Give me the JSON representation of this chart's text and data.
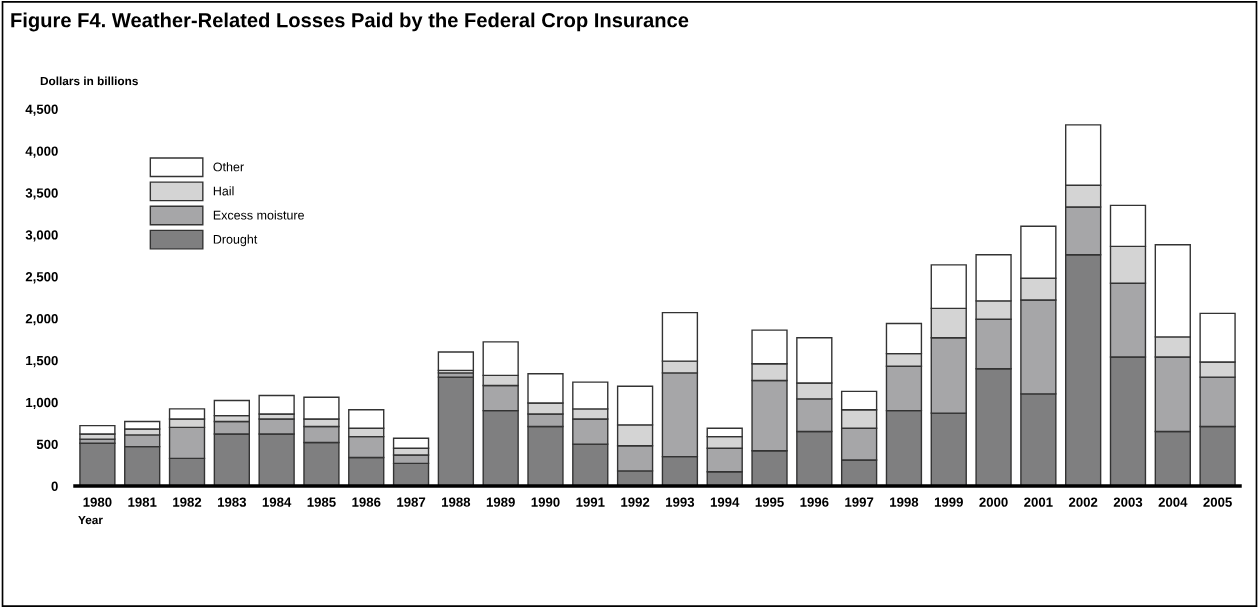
{
  "chart_data": {
    "type": "bar",
    "title": "Figure F4. Weather-Related Losses Paid by the Federal Crop Insurance",
    "ylabel": "Dollars in billions",
    "xlabel": "Year",
    "categories": [
      "1980",
      "1981",
      "1982",
      "1983",
      "1984",
      "1985",
      "1986",
      "1987",
      "1988",
      "1989",
      "1990",
      "1991",
      "1992",
      "1993",
      "1994",
      "1995",
      "1996",
      "1997",
      "1998",
      "1999",
      "2000",
      "2001",
      "2002",
      "2003",
      "2004",
      "2005"
    ],
    "stacked": true,
    "series": [
      {
        "name": "Drought",
        "color": "#7f7f80",
        "values": [
          510,
          470,
          330,
          620,
          620,
          520,
          340,
          270,
          1300,
          900,
          710,
          500,
          180,
          350,
          170,
          420,
          650,
          310,
          900,
          870,
          1400,
          1100,
          2760,
          1540,
          650,
          710
        ]
      },
      {
        "name": "Excess moisture",
        "color": "#a6a6a8",
        "values": [
          50,
          140,
          370,
          150,
          180,
          190,
          250,
          100,
          50,
          300,
          150,
          300,
          300,
          1000,
          280,
          840,
          390,
          380,
          530,
          900,
          590,
          1120,
          570,
          880,
          890,
          590
        ]
      },
      {
        "name": "Hail",
        "color": "#d4d4d4",
        "values": [
          60,
          70,
          100,
          70,
          60,
          90,
          100,
          80,
          30,
          120,
          130,
          120,
          250,
          140,
          140,
          200,
          190,
          220,
          150,
          350,
          220,
          260,
          260,
          440,
          240,
          180
        ]
      },
      {
        "name": "Other",
        "color": "#ffffff",
        "values": [
          100,
          90,
          120,
          180,
          220,
          260,
          220,
          120,
          220,
          400,
          350,
          320,
          460,
          580,
          100,
          400,
          540,
          220,
          360,
          520,
          550,
          620,
          720,
          490,
          1100,
          580
        ]
      }
    ],
    "ylim": [
      0,
      4500
    ],
    "yticks": [
      {
        "value": 0,
        "label": "0"
      },
      {
        "value": 500,
        "label": "500"
      },
      {
        "value": 1000,
        "label": "1,000"
      },
      {
        "value": 1500,
        "label": "1,500"
      },
      {
        "value": 2000,
        "label": "2,000"
      },
      {
        "value": 2500,
        "label": "2,500"
      },
      {
        "value": 3000,
        "label": "3,000"
      },
      {
        "value": 3500,
        "label": "3,500"
      },
      {
        "value": 4000,
        "label": "4,000"
      },
      {
        "value": 4500,
        "label": "4,500"
      }
    ],
    "grid": false,
    "legend": "top left"
  }
}
